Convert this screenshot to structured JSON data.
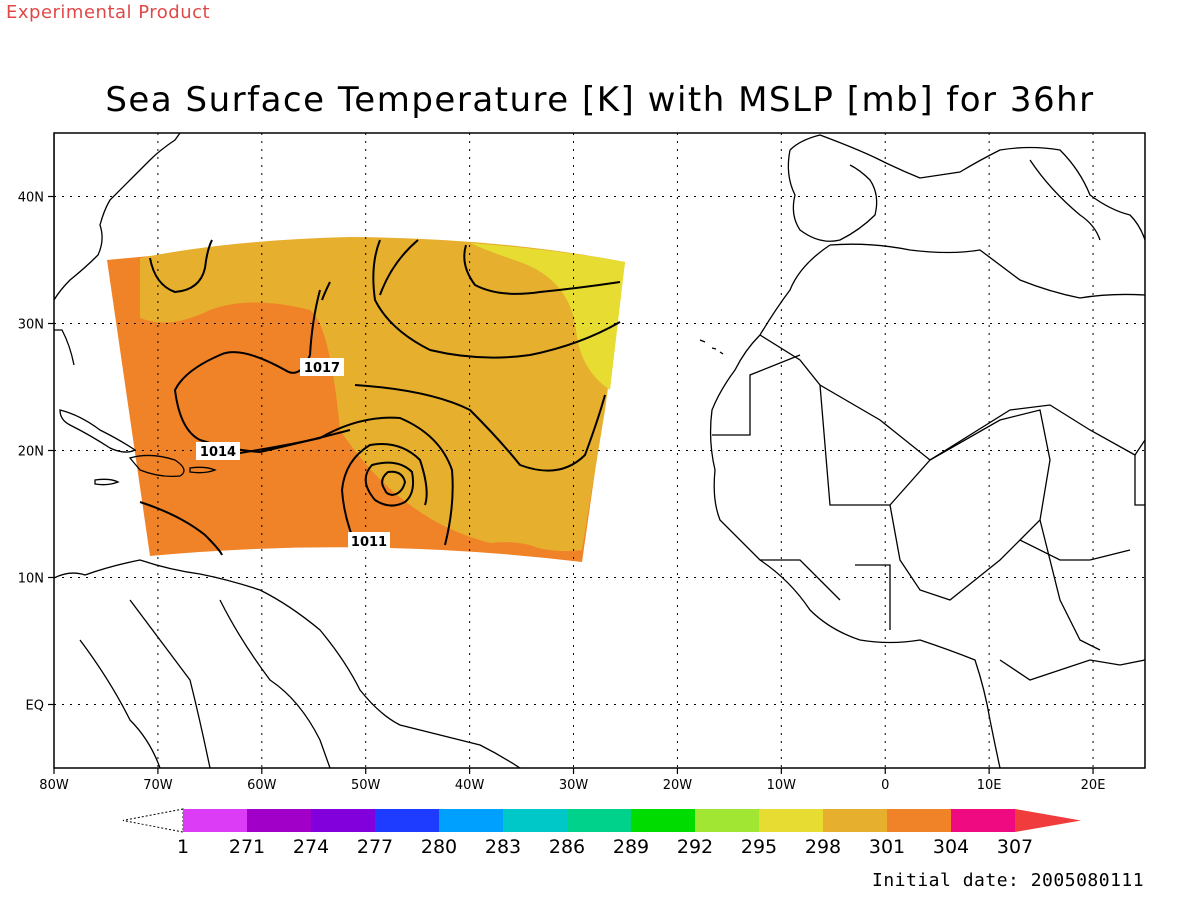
{
  "header": {
    "experimental_label": "Experimental Product"
  },
  "title": "Sea Surface Temperature [K] with MSLP [mb] for 36hr",
  "footer": {
    "initial_date_label": "Initial date: 2005080111"
  },
  "colors": {
    "c295": "#a0e632",
    "c298": "#e6dc32",
    "c301": "#e6af2d",
    "c304": "#f08228",
    "isobar": "#000000",
    "land_outline": "#000000",
    "grid": "#000000"
  },
  "map": {
    "lon_range": [
      -80,
      25
    ],
    "lat_range": [
      -5,
      45
    ],
    "lon_ticks": [
      "80W",
      "70W",
      "60W",
      "50W",
      "40W",
      "30W",
      "20W",
      "10W",
      "0",
      "10E",
      "20E"
    ],
    "lat_ticks": [
      "EQ",
      "10N",
      "20N",
      "30N",
      "40N"
    ],
    "grid": "dotted"
  },
  "colorbar": {
    "labels": [
      "1",
      "271",
      "274",
      "277",
      "280",
      "283",
      "286",
      "289",
      "292",
      "295",
      "298",
      "301",
      "304",
      "307"
    ],
    "colors": [
      "#dc3cf5",
      "#a000c8",
      "#8200dc",
      "#1e3cff",
      "#00a0ff",
      "#00c8c8",
      "#00d28c",
      "#00dc00",
      "#a0e632",
      "#e6dc32",
      "#e6af2d",
      "#f08228",
      "#f00a82"
    ],
    "over_color": "#f03c3c",
    "under_color": "#ffffff"
  },
  "contour_labels": [
    "1017",
    "1014",
    "1011"
  ]
}
